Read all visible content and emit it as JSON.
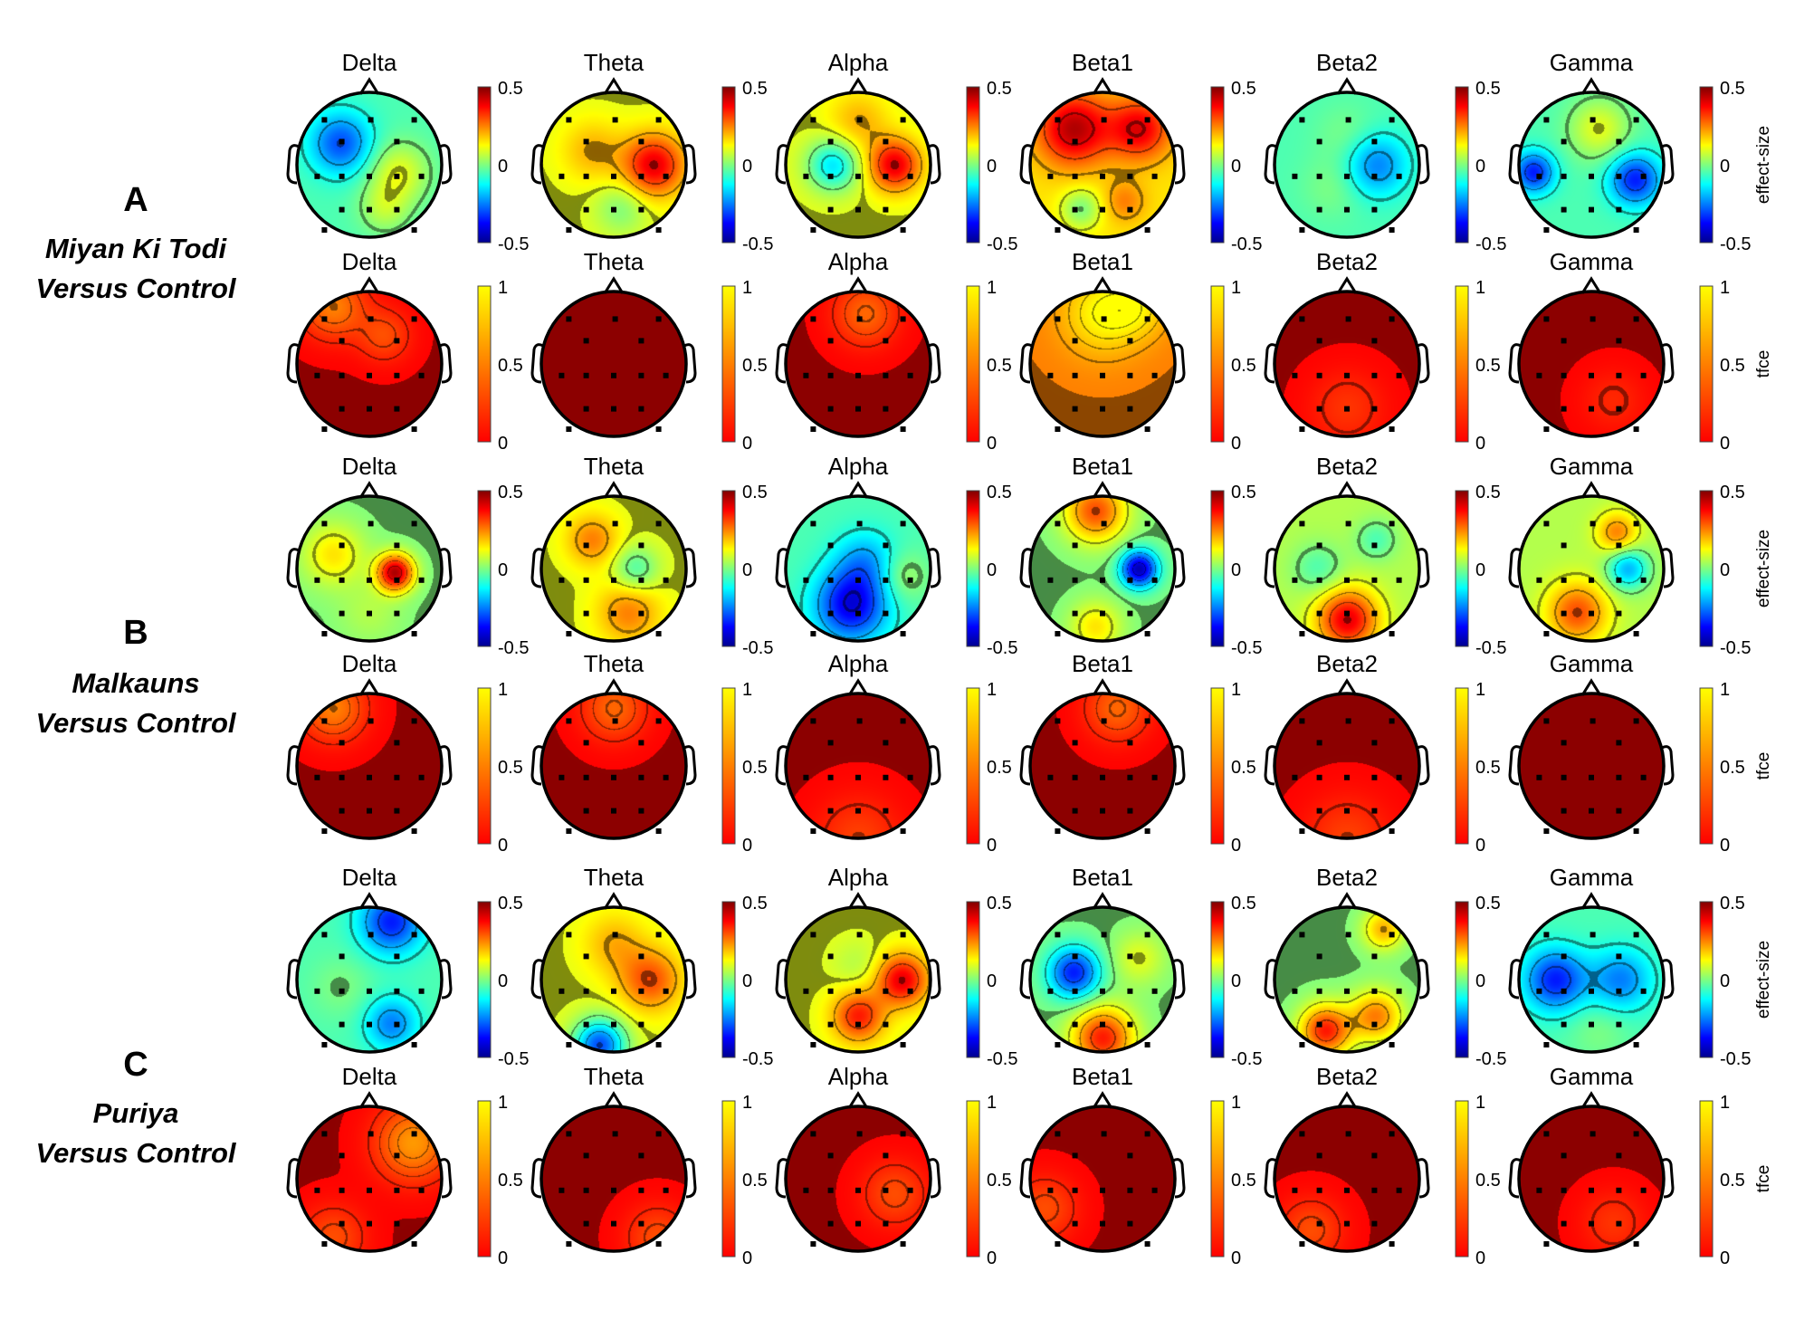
{
  "figure": {
    "bands": [
      "Delta",
      "Theta",
      "Alpha",
      "Beta1",
      "Beta2",
      "Gamma"
    ],
    "effect_colorbar": {
      "ticks": [
        "0.5",
        "0",
        "-0.5"
      ],
      "label": "effect-size",
      "range": [
        -0.5,
        0.5
      ]
    },
    "tfce_colorbar": {
      "ticks": [
        "1",
        "0.5",
        "0"
      ],
      "label": "tfce",
      "range": [
        0,
        1
      ]
    },
    "groups": [
      {
        "letter": "A",
        "line1": "Miyan Ki Todi",
        "line2": "Versus Control"
      },
      {
        "letter": "B",
        "line1": "Malkauns",
        "line2": "Versus Control"
      },
      {
        "letter": "C",
        "line1": "Puriya",
        "line2": "Versus Control"
      }
    ]
  },
  "chart_data": {
    "type": "heatmap",
    "description_rows": [
      "A effect-size",
      "A tfce",
      "B effect-size",
      "B tfce",
      "C effect-size",
      "C tfce"
    ],
    "electrodes": [
      [
        -0.62,
        -0.62
      ],
      [
        0.02,
        -0.62
      ],
      [
        0.62,
        -0.62
      ],
      [
        -0.38,
        -0.32
      ],
      [
        0.38,
        -0.32
      ],
      [
        -0.38,
        0.16
      ],
      [
        0.0,
        0.16
      ],
      [
        0.38,
        0.16
      ],
      [
        -0.72,
        0.16
      ],
      [
        0.72,
        0.16
      ],
      [
        -0.38,
        0.62
      ],
      [
        0.0,
        0.62
      ],
      [
        0.38,
        0.62
      ],
      [
        -0.62,
        0.9
      ],
      [
        0.62,
        0.9
      ]
    ],
    "maps": [
      [
        {
          "base": -0.05,
          "blobs": [
            [
              -0.4,
              -0.3,
              -0.25,
              0.3
            ],
            [
              0.4,
              0.1,
              0.15,
              0.3
            ],
            [
              0.2,
              0.6,
              0.1,
              0.25
            ]
          ]
        },
        {
          "base": 0.1,
          "blobs": [
            [
              0.55,
              0.0,
              0.3,
              0.3
            ],
            [
              -0.3,
              -0.2,
              0.1,
              0.3
            ],
            [
              0.1,
              0.6,
              -0.1,
              0.25
            ]
          ]
        },
        {
          "base": 0.1,
          "blobs": [
            [
              -0.35,
              0.0,
              -0.25,
              0.25
            ],
            [
              0.5,
              0.0,
              0.3,
              0.25
            ],
            [
              0.0,
              -0.6,
              0.1,
              0.3
            ]
          ]
        },
        {
          "base": 0.15,
          "blobs": [
            [
              -0.4,
              -0.5,
              0.3,
              0.35
            ],
            [
              0.5,
              -0.5,
              0.25,
              0.3
            ],
            [
              -0.3,
              0.6,
              -0.15,
              0.2
            ],
            [
              0.3,
              0.5,
              0.1,
              0.2
            ]
          ]
        },
        {
          "base": -0.05,
          "blobs": [
            [
              0.4,
              0.0,
              -0.2,
              0.3
            ],
            [
              -0.2,
              0.3,
              0.05,
              0.3
            ],
            [
              0.0,
              -0.4,
              0.05,
              0.3
            ]
          ]
        },
        {
          "base": -0.05,
          "blobs": [
            [
              -0.8,
              0.1,
              -0.3,
              0.2
            ],
            [
              0.6,
              0.2,
              -0.3,
              0.25
            ],
            [
              0.1,
              -0.5,
              0.15,
              0.3
            ]
          ]
        }
      ],
      [
        {
          "base": 0.0,
          "blobs": [
            [
              -0.5,
              -0.8,
              0.5,
              0.3
            ],
            [
              0.2,
              -0.4,
              0.3,
              0.25
            ]
          ]
        },
        {
          "base": 0.0,
          "blobs": []
        },
        {
          "base": 0.0,
          "blobs": [
            [
              0.1,
              -0.7,
              0.4,
              0.3
            ]
          ]
        },
        {
          "base": 0.5,
          "blobs": [
            [
              0.0,
              -0.7,
              0.5,
              0.4
            ],
            [
              0.5,
              -0.8,
              0.3,
              0.3
            ]
          ]
        },
        {
          "base": 0.0,
          "blobs": [
            [
              0.0,
              0.6,
              0.2,
              0.35
            ]
          ]
        },
        {
          "base": 0.0,
          "blobs": [
            [
              0.3,
              0.5,
              0.15,
              0.3
            ]
          ]
        }
      ],
      [
        {
          "base": 0.0,
          "blobs": [
            [
              0.35,
              0.05,
              0.45,
              0.18
            ],
            [
              -0.5,
              -0.2,
              0.15,
              0.3
            ],
            [
              0.0,
              0.6,
              0.05,
              0.3
            ]
          ]
        },
        {
          "base": 0.1,
          "blobs": [
            [
              0.3,
              0.0,
              -0.15,
              0.22
            ],
            [
              -0.3,
              -0.4,
              0.15,
              0.25
            ],
            [
              0.2,
              0.6,
              0.15,
              0.3
            ]
          ]
        },
        {
          "base": -0.05,
          "blobs": [
            [
              -0.1,
              0.5,
              -0.35,
              0.35
            ],
            [
              0.1,
              -0.1,
              -0.15,
              0.3
            ],
            [
              0.6,
              0.1,
              0.1,
              0.25
            ]
          ]
        },
        {
          "base": 0.0,
          "blobs": [
            [
              0.5,
              0.0,
              -0.45,
              0.18
            ],
            [
              -0.1,
              -0.8,
              0.3,
              0.3
            ],
            [
              -0.1,
              0.8,
              0.15,
              0.25
            ]
          ]
        },
        {
          "base": 0.05,
          "blobs": [
            [
              0.0,
              0.7,
              0.35,
              0.3
            ],
            [
              0.4,
              -0.4,
              -0.1,
              0.2
            ],
            [
              -0.4,
              0.0,
              -0.1,
              0.25
            ]
          ]
        },
        {
          "base": 0.05,
          "blobs": [
            [
              0.35,
              -0.5,
              0.2,
              0.2
            ],
            [
              0.5,
              0.0,
              -0.25,
              0.2
            ],
            [
              -0.2,
              0.6,
              0.25,
              0.3
            ]
          ]
        }
      ],
      [
        {
          "base": 0.0,
          "blobs": [
            [
              -0.5,
              -0.8,
              0.5,
              0.3
            ]
          ]
        },
        {
          "base": 0.0,
          "blobs": [
            [
              0.0,
              -0.8,
              0.4,
              0.3
            ]
          ]
        },
        {
          "base": 0.0,
          "blobs": [
            [
              0.0,
              1.0,
              0.25,
              0.4
            ]
          ]
        },
        {
          "base": 0.0,
          "blobs": [
            [
              0.2,
              -0.8,
              0.4,
              0.3
            ]
          ]
        },
        {
          "base": 0.0,
          "blobs": [
            [
              0.0,
              1.0,
              0.25,
              0.4
            ]
          ]
        },
        {
          "base": 0.0,
          "blobs": []
        }
      ],
      [
        {
          "base": -0.05,
          "blobs": [
            [
              0.3,
              -0.8,
              -0.3,
              0.3
            ],
            [
              0.3,
              0.6,
              -0.2,
              0.25
            ],
            [
              -0.4,
              0.1,
              0.05,
              0.3
            ]
          ]
        },
        {
          "base": 0.1,
          "blobs": [
            [
              -0.2,
              0.9,
              -0.4,
              0.25
            ],
            [
              0.5,
              0.0,
              0.2,
              0.3
            ],
            [
              0.0,
              -0.5,
              0.1,
              0.3
            ]
          ]
        },
        {
          "base": 0.1,
          "blobs": [
            [
              0.0,
              0.5,
              0.25,
              0.25
            ],
            [
              0.6,
              0.0,
              0.3,
              0.25
            ],
            [
              0.0,
              -0.2,
              -0.05,
              0.25
            ]
          ]
        },
        {
          "base": 0.0,
          "blobs": [
            [
              -0.4,
              -0.1,
              -0.35,
              0.25
            ],
            [
              0.0,
              0.8,
              0.35,
              0.3
            ],
            [
              0.5,
              -0.3,
              0.1,
              0.25
            ]
          ]
        },
        {
          "base": 0.0,
          "blobs": [
            [
              -0.3,
              0.7,
              0.35,
              0.25
            ],
            [
              0.4,
              0.5,
              0.25,
              0.25
            ],
            [
              0.5,
              -0.7,
              0.2,
              0.2
            ]
          ]
        },
        {
          "base": -0.05,
          "blobs": [
            [
              -0.5,
              0.0,
              -0.3,
              0.3
            ],
            [
              0.4,
              0.0,
              -0.2,
              0.3
            ],
            [
              0.1,
              0.7,
              0.05,
              0.3
            ]
          ]
        }
      ],
      [
        {
          "base": 0.0,
          "blobs": [
            [
              0.6,
              -0.5,
              0.6,
              0.35
            ],
            [
              -0.5,
              0.8,
              0.3,
              0.3
            ]
          ]
        },
        {
          "base": 0.0,
          "blobs": [
            [
              0.6,
              0.8,
              0.3,
              0.3
            ]
          ]
        },
        {
          "base": 0.0,
          "blobs": [
            [
              0.5,
              0.2,
              0.3,
              0.3
            ]
          ]
        },
        {
          "base": 0.0,
          "blobs": [
            [
              -0.8,
              0.4,
              0.3,
              0.3
            ]
          ]
        },
        {
          "base": 0.0,
          "blobs": [
            [
              -0.5,
              0.7,
              0.3,
              0.3
            ]
          ]
        },
        {
          "base": 0.0,
          "blobs": [
            [
              0.3,
              0.6,
              0.2,
              0.3
            ]
          ]
        }
      ]
    ]
  }
}
